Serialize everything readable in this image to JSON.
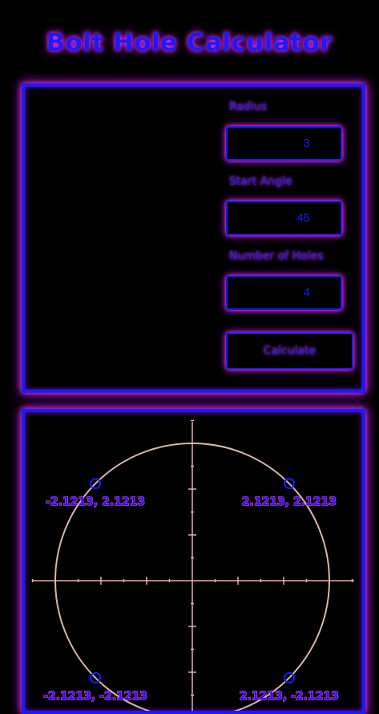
{
  "title": "Bolt Hole Calculator",
  "form": {
    "radius_label": "Radius",
    "radius_value": "3",
    "start_angle_label": "Start Angle",
    "start_angle_value": "45",
    "holes_label": "Number of Holes",
    "holes_value": "4",
    "calculate_label": "Calculate"
  },
  "colors": {
    "accent": "#1a1aff",
    "glow": "#ff3fd0",
    "circle": "#d8b8a8",
    "axis": "#e8a8c8"
  },
  "holes": [
    {
      "label": "2.1213, 2.1213",
      "x": 2.1213,
      "y": 2.1213
    },
    {
      "label": "-2.1213, 2.1213",
      "x": -2.1213,
      "y": 2.1213
    },
    {
      "label": "-2.1213, -2.1213",
      "x": -2.1213,
      "y": -2.1213
    },
    {
      "label": "2.1213, -2.1213",
      "x": 2.1213,
      "y": -2.1213
    }
  ]
}
